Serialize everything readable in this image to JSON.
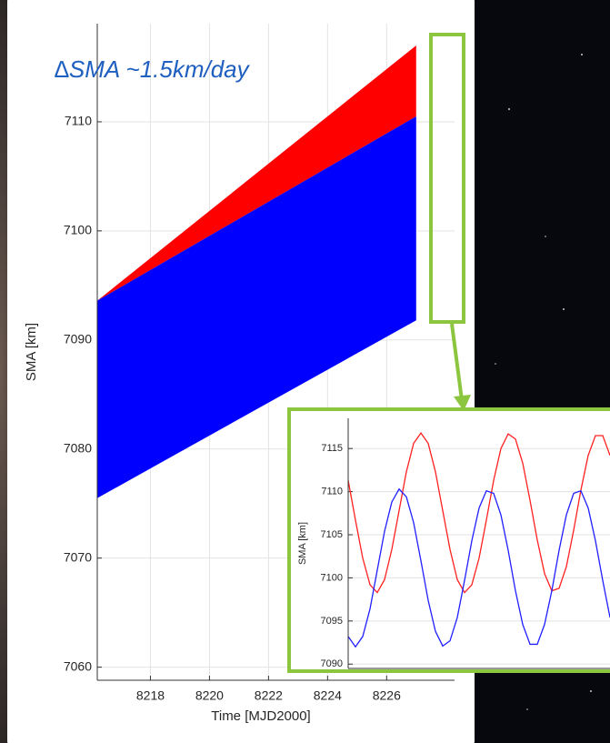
{
  "chart_data": [
    {
      "type": "band",
      "title": "∆SMA ~1.5km/day",
      "xlabel": "Time [MJD2000]",
      "ylabel": "SMA [km]",
      "x": [
        8216.2,
        8227
      ],
      "series": [
        {
          "color": "#ff0000",
          "values": [
            7093.6,
            7117
          ],
          "lower": [
            7093.6,
            7110.5
          ]
        },
        {
          "color": "#0000ff",
          "values": [
            7093.6,
            7110.5
          ],
          "lower": [
            7075.5,
            7091.8
          ]
        }
      ],
      "xlim": [
        8216.2,
        8228.3
      ],
      "ylim": [
        7058.8,
        7119
      ],
      "xticks": [
        8218,
        8220,
        8222,
        8224,
        8226
      ],
      "yticks": [
        7060,
        7070,
        7080,
        7090,
        7100,
        7110
      ],
      "grid": true
    },
    {
      "type": "line",
      "ylabel": "SMA [km]",
      "x": [
        0,
        8,
        16,
        24,
        32,
        40,
        48,
        56,
        64,
        72,
        80,
        88,
        96,
        104,
        112,
        120,
        128,
        136,
        144,
        152,
        160,
        168,
        176,
        184,
        192,
        200,
        208,
        216,
        224,
        232,
        240,
        248,
        256,
        264,
        272,
        280,
        288
      ],
      "series": [
        {
          "color": "#ff2020",
          "values": [
            7111.3,
            7106.7,
            7102.3,
            7099.2,
            7098.3,
            7099.8,
            7103.3,
            7107.8,
            7112.3,
            7115.6,
            7116.8,
            7115.6,
            7112.3,
            7107.8,
            7103.3,
            7099.8,
            7098.3,
            7099.2,
            7102.3,
            7106.7,
            7111.3,
            7115.0,
            7116.7,
            7116.1,
            7113.3,
            7109.0,
            7104.4,
            7100.5,
            7098.5,
            7098.8,
            7101.3,
            7105.5,
            7110.2,
            7114.2,
            7116.5,
            7116.5,
            7114.2
          ]
        },
        {
          "color": "#2020ff",
          "values": [
            7093.2,
            7092.0,
            7093.2,
            7096.4,
            7100.9,
            7105.4,
            7108.8,
            7110.3,
            7109.4,
            7106.4,
            7102.0,
            7097.4,
            7093.8,
            7092.1,
            7092.7,
            7095.4,
            7099.7,
            7104.3,
            7108.1,
            7110.1,
            7109.8,
            7107.3,
            7103.2,
            7098.5,
            7094.6,
            7092.3,
            7092.3,
            7094.6,
            7098.5,
            7103.2,
            7107.3,
            7109.8,
            7110.1,
            7108.1,
            7104.3,
            7099.7,
            7095.4
          ]
        }
      ],
      "xlim": [
        0,
        288
      ],
      "ylim": [
        7089.5,
        7118.5
      ],
      "yticks": [
        7090,
        7095,
        7100,
        7105,
        7110,
        7115
      ],
      "grid": true
    }
  ]
}
